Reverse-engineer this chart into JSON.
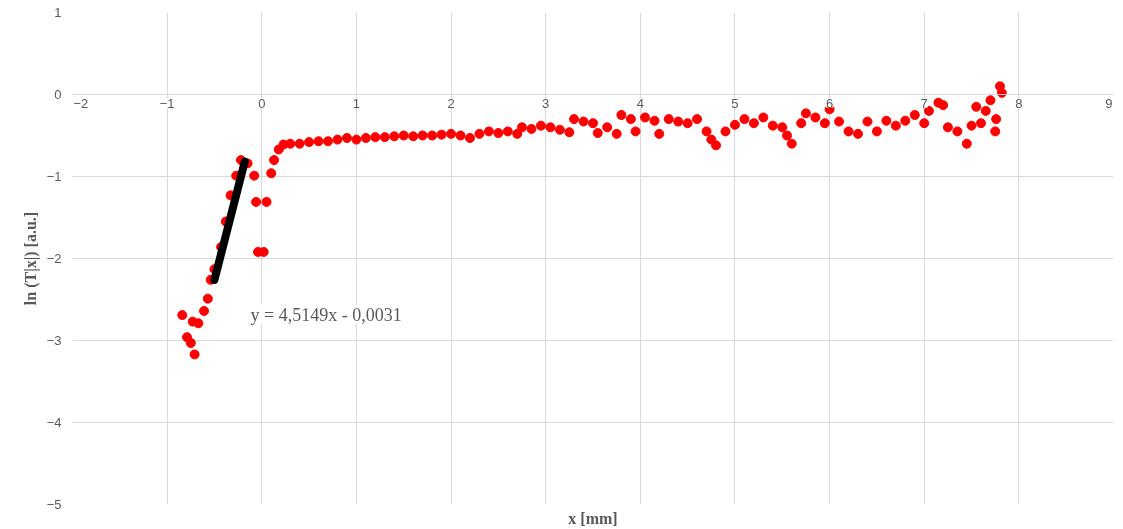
{
  "chart_data": {
    "type": "scatter",
    "xlabel": "x [mm]",
    "ylabel": "ln (T|x|) [a.u.]",
    "xlim": [
      -2,
      9
    ],
    "xticks": [
      -2,
      -1,
      0,
      1,
      2,
      3,
      4,
      5,
      6,
      7,
      8,
      9
    ],
    "ylim": [
      -5,
      1
    ],
    "yticks": [
      -5,
      -4,
      -3,
      -2,
      -1,
      0,
      1
    ],
    "grid": true,
    "marker": "circle",
    "annotations": [
      "y = 4,5149x - 0,0031"
    ],
    "series": [
      {
        "color": "#ff0000",
        "x": [
          -0.84,
          -0.79,
          -0.75,
          -0.71,
          -0.73,
          -0.67,
          -0.61,
          -0.57,
          -0.54,
          -0.5,
          -0.43,
          -0.38,
          -0.33,
          -0.27,
          -0.22,
          -0.15,
          -0.08,
          -0.06,
          -0.04,
          0.02,
          0.05,
          0.1,
          0.13,
          0.18,
          0.23,
          0.3,
          0.4,
          0.5,
          0.6,
          0.7,
          0.8,
          0.9,
          1.0,
          1.1,
          1.2,
          1.3,
          1.4,
          1.5,
          1.6,
          1.7,
          1.8,
          1.9,
          2.0,
          2.1,
          2.2,
          2.3,
          2.4,
          2.5,
          2.6,
          2.7,
          2.75,
          2.85,
          2.95,
          3.05,
          3.15,
          3.25,
          3.3,
          3.4,
          3.5,
          3.55,
          3.65,
          3.75,
          3.8,
          3.9,
          3.95,
          4.05,
          4.15,
          4.2,
          4.3,
          4.4,
          4.5,
          4.6,
          4.7,
          4.75,
          4.8,
          4.9,
          5.0,
          5.1,
          5.2,
          5.3,
          5.4,
          5.5,
          5.55,
          5.6,
          5.7,
          5.75,
          5.85,
          5.95,
          6.0,
          6.1,
          6.2,
          6.3,
          6.4,
          6.5,
          6.6,
          6.7,
          6.8,
          6.9,
          7.0,
          7.05,
          7.15,
          7.2,
          7.25,
          7.35,
          7.45,
          7.5,
          7.55,
          7.6,
          7.65,
          7.7,
          7.75,
          7.76,
          7.8,
          7.82
        ],
        "values": [
          -2.69,
          -2.96,
          -3.03,
          -3.17,
          -2.77,
          -2.79,
          -2.64,
          -2.49,
          -2.26,
          -2.13,
          -1.86,
          -1.55,
          -1.23,
          -0.99,
          -0.8,
          -0.84,
          -0.99,
          -1.31,
          -1.92,
          -1.92,
          -1.31,
          -0.96,
          -0.8,
          -0.67,
          -0.61,
          -0.6,
          -0.6,
          -0.58,
          -0.57,
          -0.57,
          -0.55,
          -0.53,
          -0.55,
          -0.53,
          -0.52,
          -0.52,
          -0.51,
          -0.5,
          -0.51,
          -0.5,
          -0.5,
          -0.49,
          -0.48,
          -0.5,
          -0.53,
          -0.48,
          -0.45,
          -0.47,
          -0.45,
          -0.48,
          -0.4,
          -0.42,
          -0.38,
          -0.4,
          -0.43,
          -0.46,
          -0.3,
          -0.33,
          -0.35,
          -0.47,
          -0.4,
          -0.48,
          -0.25,
          -0.3,
          -0.45,
          -0.28,
          -0.32,
          -0.48,
          -0.3,
          -0.33,
          -0.35,
          -0.3,
          -0.45,
          -0.55,
          -0.62,
          -0.45,
          -0.37,
          -0.3,
          -0.35,
          -0.28,
          -0.38,
          -0.4,
          -0.5,
          -0.6,
          -0.35,
          -0.23,
          -0.28,
          -0.35,
          -0.18,
          -0.33,
          -0.45,
          -0.48,
          -0.33,
          -0.45,
          -0.32,
          -0.38,
          -0.32,
          -0.25,
          -0.35,
          -0.2,
          -0.1,
          -0.13,
          -0.4,
          -0.45,
          -0.6,
          -0.38,
          -0.15,
          -0.35,
          -0.2,
          -0.07,
          -0.45,
          -0.3,
          0.1,
          0.02
        ]
      },
      {
        "type": "line",
        "marker": "none",
        "color": "#000000",
        "x": [
          -0.5,
          -0.18
        ],
        "values": [
          -2.26,
          -0.82
        ]
      }
    ]
  }
}
